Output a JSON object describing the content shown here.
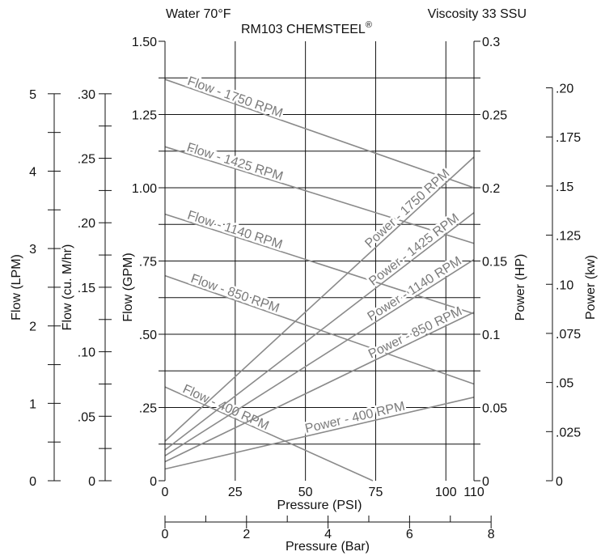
{
  "chart_data": {
    "type": "line",
    "header": {
      "left": "Water 70°F",
      "right": "Viscosity 33 SSU",
      "title": "RM103 CHEMSTEEL",
      "title_mark": "®"
    },
    "x": {
      "label": "Pressure (PSI)",
      "range": [
        0,
        110
      ],
      "ticks": [
        0,
        25,
        50,
        75,
        100,
        110
      ],
      "tick_labels": [
        "0",
        "25",
        "50",
        "75",
        "100",
        "110"
      ]
    },
    "x2": {
      "label": "Pressure (Bar)",
      "range": [
        0,
        7.58
      ],
      "ticks": [
        0,
        2,
        4,
        6,
        8
      ],
      "tick_labels": [
        "0",
        "2",
        "4",
        "6",
        "8"
      ],
      "minor_ticks": [
        1,
        3,
        5,
        7
      ]
    },
    "y_left": {
      "label": "Flow (GPM)",
      "range": [
        0,
        1.5
      ],
      "ticks": [
        0,
        0.25,
        0.5,
        0.75,
        1.0,
        1.25,
        1.5
      ],
      "tick_labels": [
        "0",
        ".25",
        ".50",
        ".75",
        "1.00",
        "1.25",
        "1.50"
      ]
    },
    "y_lpm": {
      "label": "Flow (LPM)",
      "range": [
        0,
        5.678
      ],
      "ticks": [
        0,
        1,
        2,
        3,
        4,
        5
      ],
      "tick_labels": [
        "0",
        "1",
        "2",
        "3",
        "4",
        "5"
      ]
    },
    "y_m3": {
      "label": "Flow (cu. M/hr)",
      "range": [
        0,
        0.3407
      ],
      "ticks": [
        0,
        0.05,
        0.1,
        0.15,
        0.2,
        0.25,
        0.3
      ],
      "tick_labels": [
        "0",
        ".05",
        ".10",
        ".15",
        ".20",
        ".25",
        ".30"
      ]
    },
    "y_right": {
      "label": "Power (HP)",
      "range": [
        0,
        0.3
      ],
      "ticks": [
        0,
        0.05,
        0.1,
        0.15,
        0.2,
        0.25,
        0.3
      ],
      "tick_labels": [
        "0",
        "0.05",
        "0.1",
        "0.15",
        "0.2",
        "0.25",
        "0.3"
      ]
    },
    "y_kw": {
      "label": "Power (kw)",
      "range": [
        0,
        0.2237
      ],
      "ticks": [
        0,
        0.025,
        0.05,
        0.075,
        0.1,
        0.125,
        0.15,
        0.175,
        0.2
      ],
      "tick_labels": [
        "0",
        ".025",
        ".05",
        ".075",
        ".10",
        ".125",
        ".15",
        ".175",
        ".20"
      ]
    },
    "grid": true,
    "flow_series": [
      {
        "name": "Flow - 1750 RPM",
        "x": [
          0,
          110
        ],
        "y": [
          1.37,
          1.0
        ]
      },
      {
        "name": "Flow - 1425 RPM",
        "x": [
          0,
          110
        ],
        "y": [
          1.14,
          0.81
        ]
      },
      {
        "name": "Flow - 1140 RPM",
        "x": [
          0,
          110
        ],
        "y": [
          0.91,
          0.57
        ]
      },
      {
        "name": "Flow - 850 RPM",
        "x": [
          0,
          110
        ],
        "y": [
          0.7,
          0.33
        ]
      },
      {
        "name": "Flow - 400 RPM",
        "x": [
          0,
          74
        ],
        "y": [
          0.32,
          0.0
        ]
      }
    ],
    "power_series": [
      {
        "name": "Power - 1750 RPM",
        "x": [
          0,
          110
        ],
        "y": [
          0.027,
          0.221
        ]
      },
      {
        "name": "Power - 1425 RPM",
        "x": [
          0,
          110
        ],
        "y": [
          0.021,
          0.183
        ]
      },
      {
        "name": "Power - 1140 RPM",
        "x": [
          0,
          110
        ],
        "y": [
          0.017,
          0.151
        ]
      },
      {
        "name": "Power - 850 RPM",
        "x": [
          0,
          110
        ],
        "y": [
          0.013,
          0.115
        ]
      },
      {
        "name": "Power - 400 RPM",
        "x": [
          0,
          110
        ],
        "y": [
          0.008,
          0.057
        ]
      }
    ]
  }
}
